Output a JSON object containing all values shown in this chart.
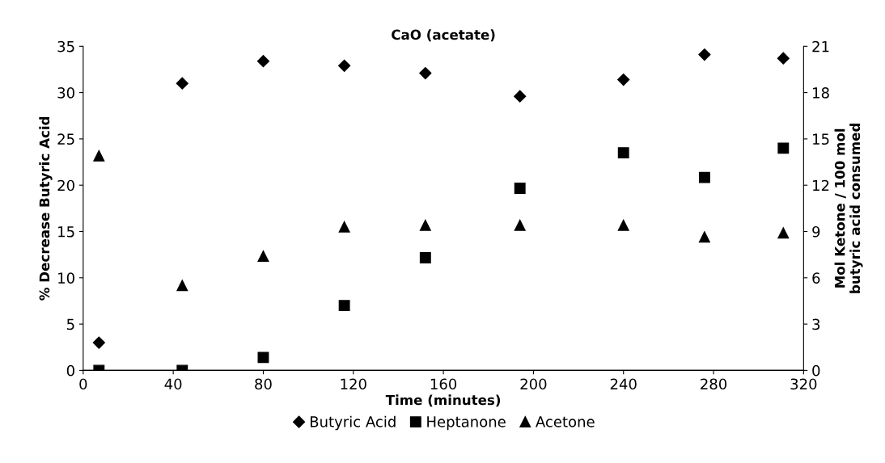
{
  "chart_data": {
    "type": "scatter",
    "title": "CaO (acetate)",
    "xlabel": "Time (minutes)",
    "ylabel": "% Decrease Butyric Acid",
    "y2label": "Mol Ketone / 100 mol\nbutyric acid consumed",
    "x": [
      7,
      44,
      80,
      116,
      152,
      194,
      240,
      276,
      311
    ],
    "series": [
      {
        "name": "Butyric Acid",
        "color": "#000000",
        "marker": "diamond",
        "values": [
          3.0,
          31.0,
          33.4,
          32.9,
          32.1,
          29.6,
          31.4,
          34.1,
          33.7
        ]
      },
      {
        "name": "Heptanone",
        "color": "#000000",
        "marker": "square",
        "axis": "y2",
        "values": [
          0,
          0,
          0.84,
          4.2,
          7.3,
          11.8,
          14.1,
          12.5,
          14.4
        ]
      },
      {
        "name": "Acetone",
        "color": "#000000",
        "marker": "triangle",
        "axis": "y2",
        "values": [
          13.9,
          5.5,
          7.4,
          9.3,
          9.4,
          9.4,
          9.4,
          8.65,
          8.9
        ]
      }
    ],
    "xlim": [
      0,
      320
    ],
    "xticks": [
      0,
      40,
      80,
      120,
      160,
      200,
      240,
      280,
      320
    ],
    "ylim": [
      0,
      35
    ],
    "yticks": [
      0,
      5,
      10,
      15,
      20,
      25,
      30,
      35
    ],
    "y2lim": [
      0,
      21
    ],
    "y2ticks": [
      0,
      3,
      6,
      9,
      12,
      15,
      18,
      21
    ],
    "grid": false,
    "legend": "bottom"
  }
}
